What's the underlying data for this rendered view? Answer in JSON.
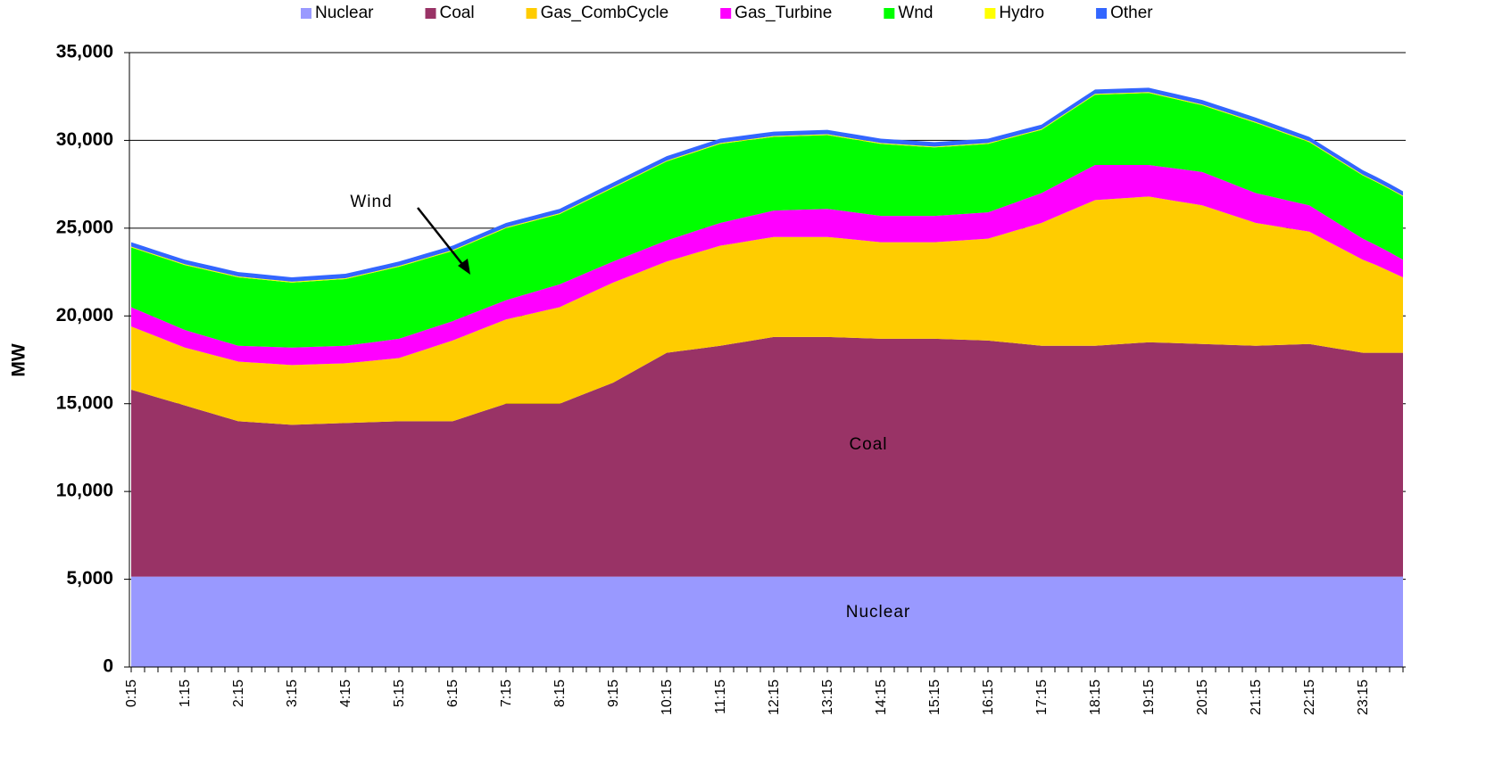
{
  "chart_data": {
    "type": "stacked_area",
    "y_label": "MW",
    "categories": [
      "0:15",
      null,
      null,
      null,
      "1:15",
      null,
      null,
      null,
      "2:15",
      null,
      null,
      null,
      "3:15",
      null,
      null,
      null,
      "4:15",
      null,
      null,
      null,
      "5:15",
      null,
      null,
      null,
      "6:15",
      null,
      null,
      null,
      "7:15",
      null,
      null,
      null,
      "8:15",
      null,
      null,
      null,
      "9:15",
      null,
      null,
      null,
      "10:15",
      null,
      null,
      null,
      "11:15",
      null,
      null,
      null,
      "12:15",
      null,
      null,
      null,
      "13:15",
      null,
      null,
      null,
      "14:15",
      null,
      null,
      null,
      "15:15",
      null,
      null,
      null,
      "16:15",
      null,
      null,
      null,
      "17:15",
      null,
      null,
      null,
      "18:15",
      null,
      null,
      null,
      "19:15",
      null,
      null,
      null,
      "20:15",
      null,
      null,
      null,
      "21:15",
      null,
      null,
      null,
      "22:15",
      null,
      null,
      null,
      "23:15",
      null,
      null,
      null
    ],
    "ylim": [
      0,
      35000
    ],
    "yticks": [
      0,
      {
        "value": 5000,
        "label": "5,000"
      },
      {
        "value": 10000,
        "label": "10,000"
      },
      {
        "value": 15000,
        "label": "15,000"
      },
      {
        "value": 20000,
        "label": "20,000"
      },
      {
        "value": 25000,
        "label": "25,000"
      },
      {
        "value": 30000,
        "label": "30,000"
      },
      {
        "value": 35000,
        "label": "35,000"
      }
    ],
    "grid": true,
    "legend": "top",
    "annotations": [
      {
        "text": "Wind"
      },
      {
        "text": "Coal"
      },
      {
        "text": "Nuclear"
      }
    ],
    "series": [
      {
        "name": "Nuclear",
        "color": "#9999ff",
        "values": [
          5150,
          5150,
          5150,
          5150,
          5150,
          5150,
          5150,
          5150,
          5150,
          5150,
          5150,
          5150,
          5150,
          5150,
          5150,
          5150,
          5150,
          5150,
          5150,
          5150,
          5150,
          5150,
          5150,
          5150,
          5150,
          5150,
          5150,
          5150,
          5150,
          5150,
          5150,
          5150,
          5150,
          5150,
          5150,
          5150,
          5150,
          5150,
          5150,
          5150,
          5150,
          5150,
          5150,
          5150,
          5150,
          5150,
          5150,
          5150,
          5150,
          5150,
          5150,
          5150,
          5150,
          5150,
          5150,
          5150,
          5150,
          5150,
          5150,
          5150,
          5150,
          5150,
          5150,
          5150,
          5150,
          5150,
          5150,
          5150,
          5150,
          5150,
          5150,
          5150,
          5150,
          5150,
          5150,
          5150,
          5150,
          5150,
          5150,
          5150,
          5150,
          5150,
          5150,
          5150,
          5150,
          5150,
          5150,
          5150,
          5150,
          5150,
          5150,
          5150,
          5150,
          5150,
          5150,
          5150
        ]
      },
      {
        "name": "Coal",
        "color": "#993366",
        "values": [
          10650,
          10425,
          10200,
          9975,
          9750,
          9525,
          9300,
          9075,
          8850,
          8800,
          8750,
          8700,
          8650,
          8675,
          8700,
          8725,
          8750,
          8775,
          8800,
          8825,
          8850,
          8850,
          8850,
          8850,
          8850,
          9100,
          9350,
          9600,
          9850,
          9850,
          9850,
          9850,
          9850,
          10150,
          10450,
          10750,
          11050,
          11475,
          11900,
          12325,
          12750,
          12850,
          12950,
          13050,
          13150,
          13275,
          13400,
          13525,
          13650,
          13650,
          13650,
          13650,
          13650,
          13625,
          13600,
          13575,
          13550,
          13550,
          13550,
          13550,
          13550,
          13525,
          13500,
          13475,
          13450,
          13375,
          13300,
          13225,
          13150,
          13150,
          13150,
          13150,
          13150,
          13200,
          13250,
          13300,
          13350,
          13325,
          13300,
          13275,
          13250,
          13225,
          13200,
          13175,
          13150,
          13175,
          13200,
          13225,
          13250,
          13125,
          13000,
          12875,
          12750,
          12750,
          12750,
          12750
        ]
      },
      {
        "name": "Gas_CombCycle",
        "color": "#ffcc00",
        "values": [
          3600,
          3525,
          3450,
          3375,
          3300,
          3325,
          3350,
          3375,
          3400,
          3400,
          3400,
          3400,
          3400,
          3400,
          3400,
          3400,
          3400,
          3450,
          3500,
          3550,
          3600,
          3850,
          4100,
          4350,
          4600,
          4650,
          4700,
          4750,
          4800,
          4975,
          5150,
          5325,
          5500,
          5550,
          5600,
          5650,
          5700,
          5575,
          5450,
          5325,
          5200,
          5325,
          5450,
          5575,
          5700,
          5700,
          5700,
          5700,
          5700,
          5700,
          5700,
          5700,
          5700,
          5650,
          5600,
          5550,
          5500,
          5500,
          5500,
          5500,
          5500,
          5575,
          5650,
          5725,
          5800,
          6100,
          6400,
          6700,
          7000,
          7325,
          7650,
          7975,
          8300,
          8300,
          8300,
          8300,
          8300,
          8200,
          8100,
          8000,
          7900,
          7675,
          7450,
          7225,
          7000,
          6850,
          6700,
          6550,
          6400,
          6125,
          5850,
          5575,
          5300,
          5000,
          4650,
          4300
        ]
      },
      {
        "name": "Gas_Turbine",
        "color": "#ff00ff",
        "values": [
          1100,
          1075,
          1050,
          1025,
          1000,
          975,
          950,
          925,
          900,
          925,
          950,
          975,
          1000,
          1000,
          1000,
          1000,
          1000,
          1025,
          1050,
          1075,
          1100,
          1100,
          1100,
          1100,
          1100,
          1100,
          1100,
          1100,
          1100,
          1150,
          1200,
          1250,
          1300,
          1275,
          1250,
          1225,
          1200,
          1200,
          1200,
          1200,
          1200,
          1225,
          1250,
          1275,
          1300,
          1350,
          1400,
          1450,
          1500,
          1525,
          1550,
          1575,
          1600,
          1575,
          1550,
          1525,
          1500,
          1500,
          1500,
          1500,
          1500,
          1500,
          1500,
          1500,
          1500,
          1550,
          1600,
          1650,
          1700,
          1775,
          1850,
          1925,
          2000,
          1950,
          1900,
          1850,
          1800,
          1825,
          1850,
          1875,
          1900,
          1850,
          1800,
          1750,
          1700,
          1650,
          1600,
          1550,
          1500,
          1425,
          1350,
          1275,
          1200,
          1125,
          1075,
          1000
        ]
      },
      {
        "name": "Wnd",
        "color": "#00ff00",
        "values": [
          3400,
          3475,
          3550,
          3625,
          3700,
          3750,
          3800,
          3850,
          3900,
          3850,
          3800,
          3750,
          3700,
          3725,
          3750,
          3775,
          3800,
          3875,
          3950,
          4025,
          4100,
          4075,
          4050,
          4025,
          4000,
          4025,
          4050,
          4075,
          4100,
          4075,
          4050,
          4025,
          4000,
          4050,
          4100,
          4150,
          4200,
          4275,
          4350,
          4425,
          4500,
          4500,
          4500,
          4500,
          4500,
          4425,
          4350,
          4275,
          4200,
          4200,
          4200,
          4200,
          4200,
          4175,
          4150,
          4125,
          4100,
          4050,
          4000,
          3950,
          3900,
          3900,
          3900,
          3900,
          3900,
          3825,
          3750,
          3675,
          3600,
          3700,
          3800,
          3900,
          4000,
          4025,
          4050,
          4075,
          4100,
          4025,
          3950,
          3875,
          3800,
          3850,
          3900,
          3950,
          4000,
          3900,
          3800,
          3700,
          3600,
          3600,
          3600,
          3600,
          3600,
          3600,
          3600,
          3600
        ]
      },
      {
        "name": "Hydro",
        "color": "#ffff00",
        "values": [
          50,
          50,
          50,
          50,
          50,
          50,
          50,
          50,
          50,
          50,
          50,
          50,
          50,
          50,
          50,
          50,
          50,
          50,
          50,
          50,
          50,
          50,
          50,
          50,
          50,
          50,
          50,
          50,
          50,
          50,
          50,
          50,
          50,
          50,
          50,
          50,
          50,
          50,
          50,
          50,
          50,
          50,
          50,
          50,
          50,
          50,
          50,
          50,
          50,
          50,
          50,
          50,
          50,
          50,
          50,
          50,
          50,
          50,
          50,
          50,
          50,
          50,
          50,
          50,
          50,
          50,
          50,
          50,
          50,
          50,
          50,
          50,
          50,
          50,
          50,
          50,
          50,
          50,
          50,
          50,
          50,
          50,
          50,
          50,
          50,
          50,
          50,
          50,
          50,
          50,
          50,
          50,
          50,
          50,
          50,
          50
        ]
      },
      {
        "name": "Other",
        "color": "#3366ff",
        "values": [
          250,
          250,
          250,
          250,
          250,
          250,
          250,
          250,
          250,
          250,
          250,
          250,
          250,
          250,
          250,
          250,
          250,
          250,
          250,
          250,
          250,
          250,
          250,
          250,
          250,
          250,
          250,
          250,
          250,
          250,
          250,
          250,
          250,
          250,
          250,
          250,
          250,
          250,
          250,
          250,
          250,
          250,
          250,
          250,
          250,
          250,
          250,
          250,
          250,
          250,
          250,
          250,
          250,
          250,
          250,
          250,
          250,
          250,
          250,
          250,
          250,
          250,
          250,
          250,
          250,
          250,
          250,
          250,
          250,
          250,
          250,
          250,
          250,
          250,
          250,
          250,
          250,
          250,
          250,
          250,
          250,
          250,
          250,
          250,
          250,
          250,
          250,
          250,
          250,
          250,
          250,
          250,
          250,
          250,
          250,
          250
        ]
      }
    ]
  }
}
